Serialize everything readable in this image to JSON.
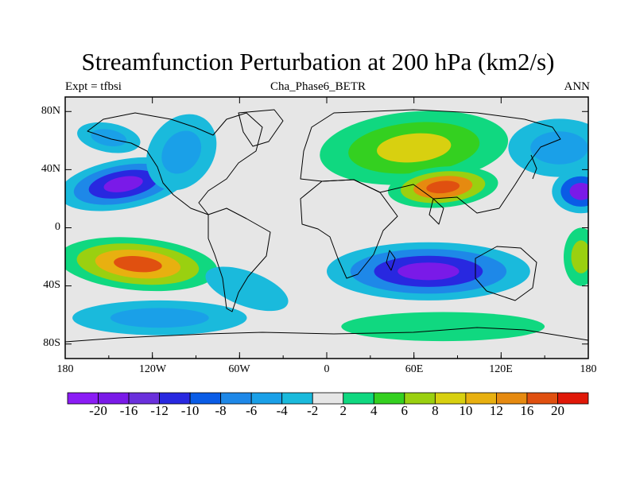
{
  "title": "Streamfunction Perturbation at 200 hPa (km2/s)",
  "subtitle": {
    "left": "Expt = tfbsi",
    "center": "Cha_Phase6_BETR",
    "right": "ANN"
  },
  "map": {
    "y_ticks": [
      "80N",
      "40N",
      "0",
      "40S",
      "80S"
    ],
    "x_ticks": [
      "180",
      "120W",
      "60W",
      "0",
      "60E",
      "120E",
      "180"
    ],
    "land_line_color": "#000000",
    "ocean_background": "#e6e6e6"
  },
  "colorbar": {
    "colors": [
      "#8b1cf5",
      "#7a1ae8",
      "#6a30dc",
      "#2828e0",
      "#0a5ce6",
      "#1e88e8",
      "#1aa0e8",
      "#1abadc",
      "#e6e6e6",
      "#10d880",
      "#34d020",
      "#9ad010",
      "#d8d010",
      "#e8b010",
      "#e68a10",
      "#e05010",
      "#e01808"
    ],
    "labels": [
      "-20",
      "-16",
      "-12",
      "-10",
      "-8",
      "-6",
      "-4",
      "-2",
      "2",
      "4",
      "6",
      "8",
      "10",
      "12",
      "16",
      "20"
    ]
  },
  "fields": [
    {
      "name": "n-pacific-low",
      "cx": -140,
      "cy": 30,
      "rx": 45,
      "ry": 17,
      "rot": -10,
      "levels": [
        -2,
        -6,
        -10,
        -16
      ]
    },
    {
      "name": "nw-atlantic-ridge-tail",
      "cx": -150,
      "cy": 62,
      "rx": 22,
      "ry": 10,
      "rot": 10,
      "levels": [
        -2,
        -4
      ]
    },
    {
      "name": "na-trough",
      "cx": -100,
      "cy": 52,
      "rx": 22,
      "ry": 28,
      "rot": 35,
      "levels": [
        -2,
        -4
      ]
    },
    {
      "name": "s-pacific-high",
      "cx": -130,
      "cy": -25,
      "rx": 55,
      "ry": 18,
      "rot": 5,
      "levels": [
        2,
        6,
        10,
        16
      ]
    },
    {
      "name": "s-pacific-low",
      "cx": -115,
      "cy": -62,
      "rx": 60,
      "ry": 12,
      "rot": 0,
      "levels": [
        -2,
        -4
      ]
    },
    {
      "name": "s-atlantic-low",
      "cx": -55,
      "cy": -42,
      "rx": 30,
      "ry": 12,
      "rot": 20,
      "levels": [
        -2
      ]
    },
    {
      "name": "eurasia-high",
      "cx": 60,
      "cy": 55,
      "rx": 65,
      "ry": 25,
      "rot": -5,
      "levels": [
        2,
        4,
        8
      ]
    },
    {
      "name": "asia-high",
      "cx": 80,
      "cy": 28,
      "rx": 38,
      "ry": 14,
      "rot": -5,
      "levels": [
        2,
        6,
        12,
        16
      ]
    },
    {
      "name": "s-indian-low",
      "cx": 70,
      "cy": -30,
      "rx": 70,
      "ry": 20,
      "rot": 0,
      "levels": [
        -2,
        -6,
        -10,
        -16
      ]
    },
    {
      "name": "s-ocean-high",
      "cx": 80,
      "cy": -68,
      "rx": 70,
      "ry": 10,
      "rot": 0,
      "levels": [
        2
      ]
    },
    {
      "name": "n-pacific-east-low",
      "cx": 160,
      "cy": 55,
      "rx": 35,
      "ry": 20,
      "rot": 0,
      "levels": [
        -2,
        -4
      ]
    },
    {
      "name": "dateline-low",
      "cx": 175,
      "cy": 25,
      "rx": 20,
      "ry": 15,
      "rot": 0,
      "levels": [
        -2,
        -8,
        -16
      ]
    },
    {
      "name": "w-pacific-high",
      "cx": 175,
      "cy": -20,
      "rx": 12,
      "ry": 20,
      "rot": 0,
      "levels": [
        2,
        6
      ]
    }
  ]
}
